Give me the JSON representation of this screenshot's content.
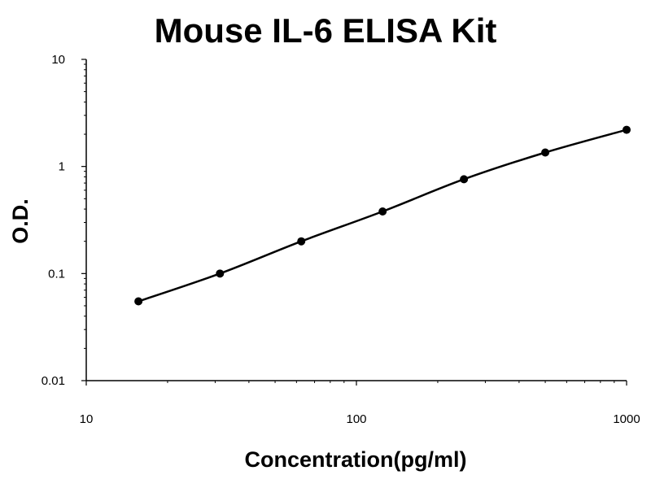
{
  "chart_data": {
    "type": "line",
    "title": "Mouse IL-6 ELISA Kit",
    "xlabel": "Concentration(pg/ml)",
    "ylabel": "O.D.",
    "xscale": "log",
    "yscale": "log",
    "xlim": [
      10,
      1000
    ],
    "ylim": [
      0.01,
      10
    ],
    "xticks": [
      "10",
      "100",
      "1000"
    ],
    "yticks": [
      "10",
      "1",
      "0.1",
      "0.01"
    ],
    "grid": false,
    "legend": "none",
    "series": [
      {
        "x": [
          15.6,
          31.25,
          62.5,
          125,
          250,
          500,
          1000
        ],
        "y": [
          0.055,
          0.1,
          0.2,
          0.38,
          0.76,
          1.35,
          2.2
        ]
      }
    ],
    "colors": {
      "line": "#000000",
      "markers": "#000000",
      "axes": "#000000"
    }
  }
}
